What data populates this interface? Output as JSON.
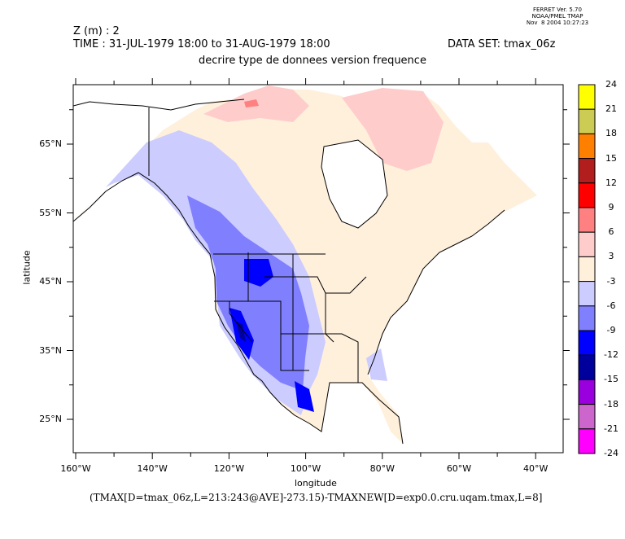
{
  "ferret_stamp": {
    "line1": "FERRET Ver. 5.70",
    "line2": "NOAA/PMEL TMAP",
    "line3": "Nov  8 2004 10:27:23"
  },
  "header": {
    "z_label": "Z (m) : 2",
    "time_label": "TIME : 31-JUL-1979 18:00 to 31-AUG-1979 18:00",
    "dataset_label": "DATA SET: tmax_06z",
    "subtitle": "decrire type de donnees version frequence"
  },
  "axes": {
    "xlabel": "longitude",
    "ylabel": "latitude",
    "x_ticks": [
      "160°W",
      "140°W",
      "120°W",
      "100°W",
      "80°W",
      "60°W",
      "40°W"
    ],
    "x_tick_values": [
      -160,
      -140,
      -120,
      -100,
      -80,
      -60,
      -40
    ],
    "y_ticks": [
      "65°N",
      "55°N",
      "45°N",
      "35°N",
      "25°N"
    ],
    "y_tick_values": [
      65,
      55,
      45,
      35,
      25
    ],
    "x_range": [
      -160.6,
      -32.8
    ],
    "y_range": [
      20.1,
      73.6
    ]
  },
  "formula": "(TMAX[D=tmax_06z,L=213:243@AVE]-273.15)-TMAXNEW[D=exp0.0.cru.uqam.tmax,L=8]",
  "colorbar": {
    "labels": [
      "24",
      "21",
      "18",
      "15",
      "12",
      "9",
      "6",
      "3",
      "-3",
      "-6",
      "-9",
      "-12",
      "-15",
      "-18",
      "-21",
      "-24"
    ],
    "colors": [
      "#ffff00",
      "#cccc55",
      "#ff8000",
      "#b21e1e",
      "#ff0000",
      "#ff8080",
      "#ffcccc",
      "#fff0dc",
      "#ccccff",
      "#8080ff",
      "#0000ff",
      "#00009c",
      "#9900dd",
      "#cc66cc",
      "#ff00ff"
    ]
  }
}
